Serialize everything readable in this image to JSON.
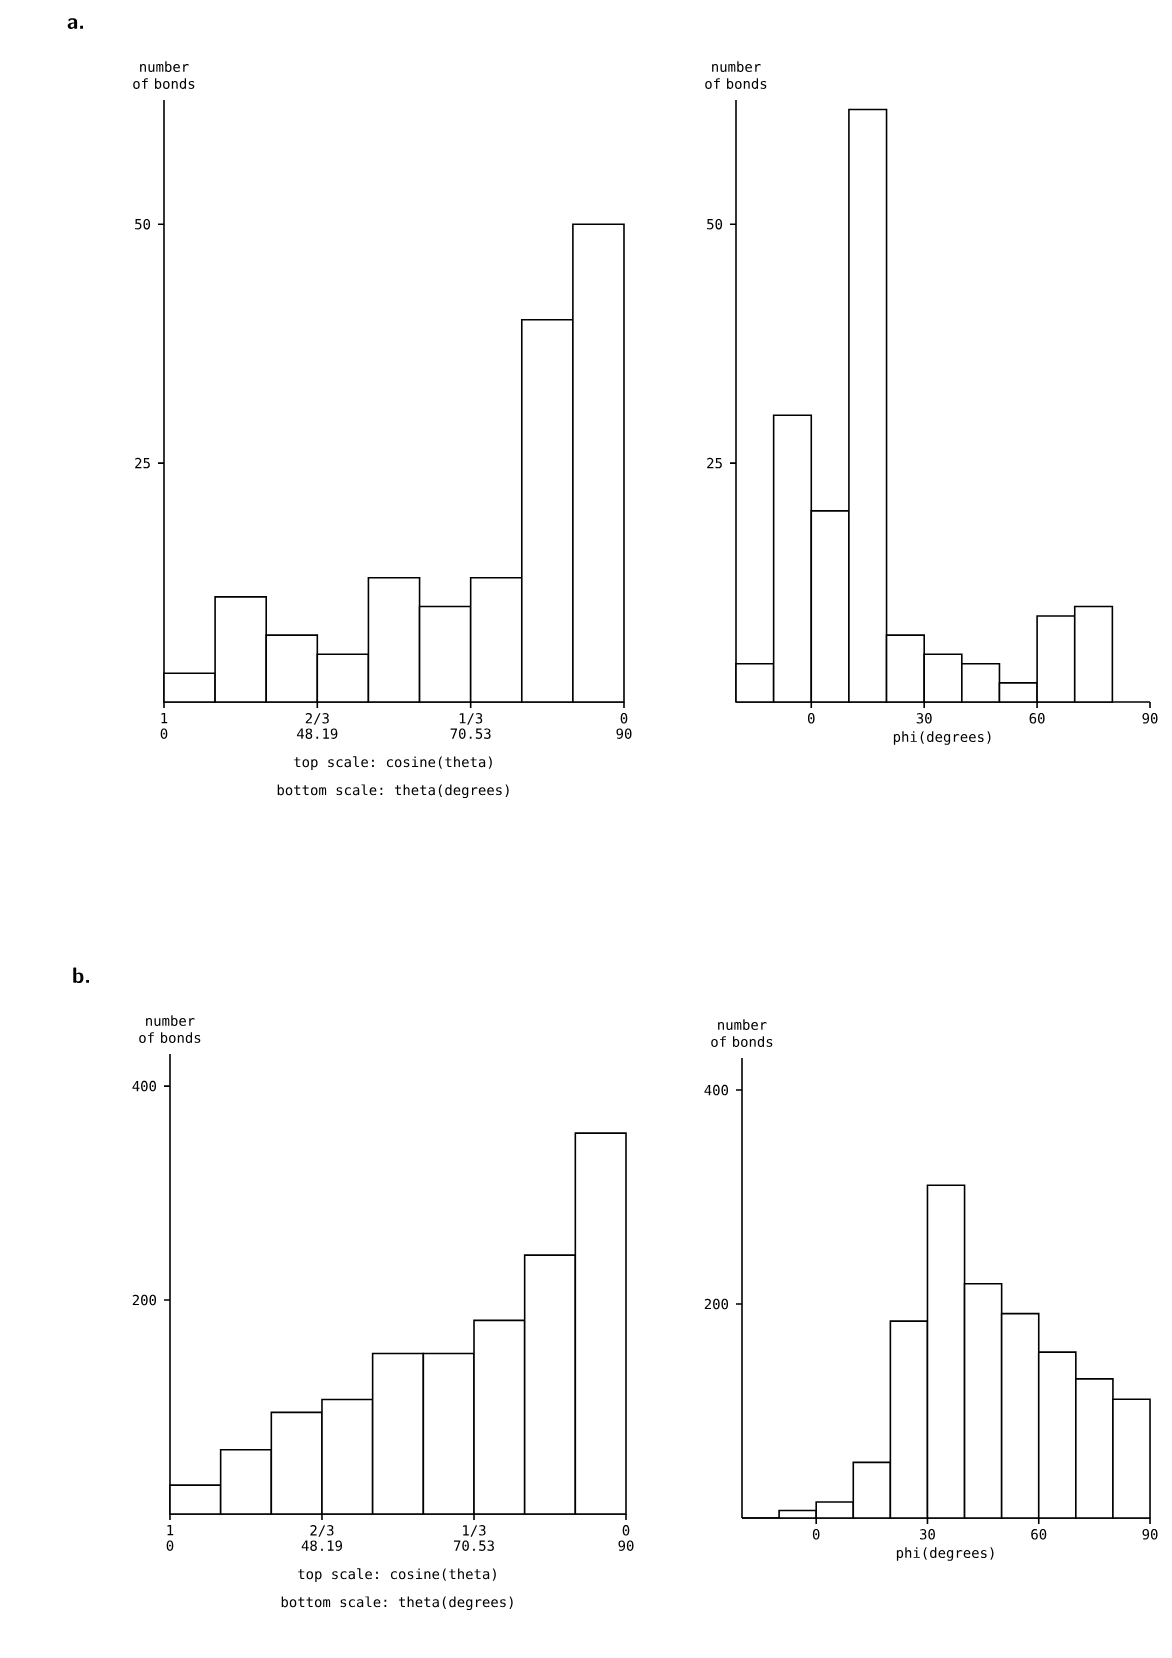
{
  "chart_data": [
    {
      "type": "histogram",
      "title": "a.",
      "ylabel": "number of bonds",
      "xlabel": "top scale: cosine(theta)",
      "annotations": [
        {
          "text": "0",
          "x": 1,
          "y": 0
        },
        {
          "text": "48.19",
          "x": 0.6667,
          "y": 0
        },
        {
          "text": "70.53",
          "x": 0.3333,
          "y": 0
        },
        {
          "text": "90",
          "x": 0,
          "y": 0
        },
        "bottom scale: theta(degrees)"
      ],
      "bins": [
        1,
        0.8889,
        0.7778,
        0.6667,
        0.5556,
        0.4444,
        0.3333,
        0.2222,
        0.1111,
        0
      ],
      "values": [
        3,
        11,
        7,
        5,
        13,
        10,
        13,
        40,
        50
      ],
      "xlim": [
        1,
        0
      ],
      "ylim": [
        0,
        63
      ],
      "xticks": [
        {
          "value": 1,
          "label": "1"
        },
        {
          "value": 0.6667,
          "label": "2/3"
        },
        {
          "value": 0.3333,
          "label": "1/3"
        },
        {
          "value": 0,
          "label": "0"
        }
      ],
      "yticks": [
        25,
        50
      ]
    },
    {
      "type": "histogram",
      "ylabel": "number of bonds",
      "xlabel": "phi(degrees)",
      "bins": [
        -20,
        -10,
        0,
        10,
        20,
        30,
        40,
        50,
        60,
        70,
        80
      ],
      "values": [
        4,
        30,
        20,
        62,
        7,
        5,
        4,
        2,
        9,
        10
      ],
      "xlim": [
        -20,
        90
      ],
      "ylim": [
        0,
        63
      ],
      "xticks": [
        0,
        30,
        60,
        90
      ],
      "yticks": [
        25,
        50
      ]
    },
    {
      "type": "histogram",
      "title": "b.",
      "ylabel": "number of bonds",
      "xlabel": "top scale: cosine(theta)",
      "annotations": [
        {
          "text": "0",
          "x": 1,
          "y": 0
        },
        {
          "text": "48.19",
          "x": 0.6667,
          "y": 0
        },
        {
          "text": "70.53",
          "x": 0.3333,
          "y": 0
        },
        {
          "text": "90",
          "x": 0,
          "y": 0
        },
        "bottom scale: theta(degrees)"
      ],
      "bins": [
        1,
        0.8889,
        0.7778,
        0.6667,
        0.5556,
        0.4444,
        0.3333,
        0.2222,
        0.1111,
        0
      ],
      "values": [
        27,
        60,
        95,
        107,
        150,
        150,
        181,
        242,
        356
      ],
      "xlim": [
        1,
        0
      ],
      "ylim": [
        0,
        430
      ],
      "xticks": [
        {
          "value": 1,
          "label": "1"
        },
        {
          "value": 0.6667,
          "label": "2/3"
        },
        {
          "value": 0.3333,
          "label": "1/3"
        },
        {
          "value": 0,
          "label": "0"
        }
      ],
      "yticks": [
        200,
        400
      ]
    },
    {
      "type": "histogram",
      "ylabel": "number of bonds",
      "xlabel": "phi(degrees)",
      "bins": [
        -20,
        -10,
        0,
        10,
        20,
        30,
        40,
        50,
        60,
        70,
        80,
        90
      ],
      "values": [
        0,
        7,
        15,
        52,
        184,
        311,
        219,
        191,
        155,
        130,
        111
      ],
      "xlim": [
        -20,
        90
      ],
      "ylim": [
        0,
        430
      ],
      "xticks": [
        0,
        30,
        60,
        90
      ],
      "yticks": [
        200,
        400
      ]
    }
  ]
}
